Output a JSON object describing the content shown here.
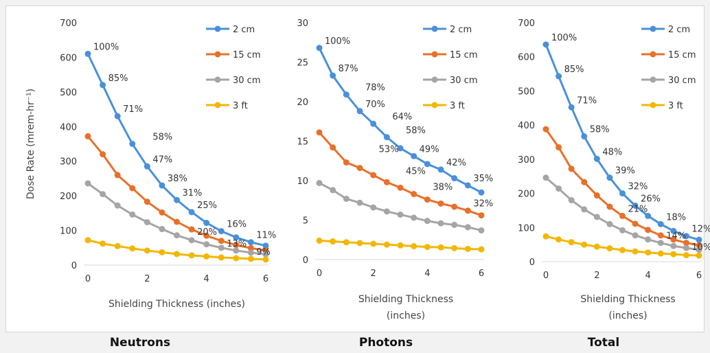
{
  "panels": [
    {
      "title": "Neutrons"
    },
    {
      "title": "Photons"
    },
    {
      "title": "Total"
    }
  ],
  "chart_data": [
    {
      "type": "line",
      "title": "Neutrons",
      "xlabel": "Shielding Thickness (inches)",
      "ylabel": "Dose Rate (mrem-hr⁻¹)",
      "xlim": [
        0,
        6
      ],
      "ylim": [
        0,
        700
      ],
      "x_ticks": [
        0,
        2,
        4,
        6
      ],
      "y_ticks": [
        0,
        100,
        200,
        300,
        400,
        500,
        600,
        700
      ],
      "x": [
        0,
        0.5,
        1,
        1.5,
        2,
        2.5,
        3,
        3.5,
        4,
        4.5,
        5,
        5.5,
        6
      ],
      "legend": "top-right",
      "grid": false,
      "series": [
        {
          "name": "2 cm",
          "color": "#4a90d9",
          "values": [
            610,
            520,
            430,
            350,
            285,
            230,
            188,
            153,
            122,
            98,
            80,
            66,
            56
          ]
        },
        {
          "name": "15 cm",
          "color": "#e8702a",
          "values": [
            372,
            320,
            260,
            222,
            183,
            152,
            125,
            103,
            85,
            70,
            58,
            49,
            42
          ]
        },
        {
          "name": "30 cm",
          "color": "#a5a5a5",
          "values": [
            236,
            205,
            172,
            146,
            124,
            104,
            86,
            72,
            60,
            50,
            42,
            36,
            31
          ]
        },
        {
          "name": "3 ft",
          "color": "#f2b705",
          "values": [
            72,
            62,
            55,
            48,
            42,
            37,
            32,
            28,
            25,
            22,
            20,
            18,
            16
          ]
        }
      ],
      "annotations": [
        {
          "text": "100%",
          "x": 0,
          "y": 610
        },
        {
          "text": "85%",
          "x": 0.5,
          "y": 520
        },
        {
          "text": "71%",
          "x": 1,
          "y": 430
        },
        {
          "text": "58%",
          "x": 2,
          "y": 350
        },
        {
          "text": "47%",
          "x": 2,
          "y": 285
        },
        {
          "text": "38%",
          "x": 2.5,
          "y": 230
        },
        {
          "text": "31%",
          "x": 3,
          "y": 188
        },
        {
          "text": "25%",
          "x": 3.5,
          "y": 153
        },
        {
          "text": "16%",
          "x": 4.5,
          "y": 98
        },
        {
          "text": "20%",
          "x": 3.5,
          "y": 75
        },
        {
          "text": "11%",
          "x": 5.5,
          "y": 66
        },
        {
          "text": "13%",
          "x": 4.5,
          "y": 42
        },
        {
          "text": "9%",
          "x": 5.5,
          "y": 18
        }
      ]
    },
    {
      "type": "line",
      "title": "Photons",
      "xlabel": "Shielding Thickness\n(inches)",
      "ylabel": "",
      "xlim": [
        0,
        6
      ],
      "ylim": [
        0,
        30
      ],
      "x_ticks": [
        0,
        2,
        4,
        6
      ],
      "y_ticks": [
        0,
        5,
        10,
        15,
        20,
        25,
        30
      ],
      "x": [
        0,
        0.5,
        1,
        1.5,
        2,
        2.5,
        3,
        3.5,
        4,
        4.5,
        5,
        5.5,
        6
      ],
      "legend": "top-right",
      "grid": false,
      "series": [
        {
          "name": "2 cm",
          "color": "#4a90d9",
          "values": [
            26.8,
            23.3,
            20.9,
            18.8,
            17.2,
            15.5,
            14.1,
            13.1,
            12.1,
            11.4,
            10.3,
            9.4,
            8.5
          ]
        },
        {
          "name": "15 cm",
          "color": "#e8702a",
          "values": [
            16.1,
            14.2,
            12.3,
            11.6,
            10.7,
            9.8,
            9.1,
            8.3,
            7.6,
            7.1,
            6.7,
            6.2,
            5.6
          ]
        },
        {
          "name": "30 cm",
          "color": "#a5a5a5",
          "values": [
            9.7,
            8.8,
            7.7,
            7.2,
            6.6,
            6.1,
            5.7,
            5.3,
            4.9,
            4.6,
            4.4,
            4.1,
            3.7
          ]
        },
        {
          "name": "3 ft",
          "color": "#f2b705",
          "values": [
            2.4,
            2.3,
            2.2,
            2.1,
            2.0,
            1.9,
            1.8,
            1.7,
            1.6,
            1.55,
            1.45,
            1.35,
            1.3
          ]
        }
      ],
      "annotations": [
        {
          "text": "100%",
          "x": 0,
          "y": 26.8
        },
        {
          "text": "87%",
          "x": 0.5,
          "y": 23.3
        },
        {
          "text": "78%",
          "x": 1.5,
          "y": 20.9
        },
        {
          "text": "70%",
          "x": 1.5,
          "y": 18.8
        },
        {
          "text": "64%",
          "x": 2.5,
          "y": 17.2
        },
        {
          "text": "58%",
          "x": 3,
          "y": 15.5
        },
        {
          "text": "53%",
          "x": 2,
          "y": 13.1
        },
        {
          "text": "49%",
          "x": 3.5,
          "y": 13.1
        },
        {
          "text": "45%",
          "x": 3,
          "y": 10.3
        },
        {
          "text": "42%",
          "x": 4.5,
          "y": 11.4
        },
        {
          "text": "38%",
          "x": 4,
          "y": 8.3
        },
        {
          "text": "35%",
          "x": 5.5,
          "y": 9.4
        },
        {
          "text": "32%",
          "x": 5.5,
          "y": 6.2
        }
      ]
    },
    {
      "type": "line",
      "title": "Total",
      "xlabel": "Shielding Thickness\n(inches)",
      "ylabel": "",
      "xlim": [
        0,
        6
      ],
      "ylim": [
        0,
        700
      ],
      "x_ticks": [
        0,
        2,
        4,
        6
      ],
      "y_ticks": [
        0,
        100,
        200,
        300,
        400,
        500,
        600,
        700
      ],
      "x": [
        0,
        0.5,
        1,
        1.5,
        2,
        2.5,
        3,
        3.5,
        4,
        4.5,
        5,
        5.5,
        6
      ],
      "legend": "top-right",
      "grid": false,
      "series": [
        {
          "name": "2 cm",
          "color": "#4a90d9",
          "values": [
            636,
            543,
            452,
            367,
            301,
            246,
            200,
            164,
            134,
            110,
            90,
            75,
            64
          ]
        },
        {
          "name": "15 cm",
          "color": "#e8702a",
          "values": [
            388,
            335,
            272,
            233,
            194,
            161,
            134,
            111,
            93,
            77,
            65,
            55,
            48
          ]
        },
        {
          "name": "30 cm",
          "color": "#a5a5a5",
          "values": [
            246,
            214,
            180,
            153,
            131,
            110,
            92,
            77,
            65,
            55,
            46,
            40,
            35
          ]
        },
        {
          "name": "3 ft",
          "color": "#f2b705",
          "values": [
            74,
            65,
            57,
            50,
            44,
            39,
            34,
            30,
            27,
            24,
            22,
            19,
            18
          ]
        }
      ],
      "annotations": [
        {
          "text": "100%",
          "x": 0,
          "y": 636
        },
        {
          "text": "85%",
          "x": 0.5,
          "y": 543
        },
        {
          "text": "71%",
          "x": 1,
          "y": 452
        },
        {
          "text": "58%",
          "x": 1.5,
          "y": 367
        },
        {
          "text": "48%",
          "x": 2,
          "y": 301
        },
        {
          "text": "39%",
          "x": 2.5,
          "y": 246
        },
        {
          "text": "32%",
          "x": 3,
          "y": 200
        },
        {
          "text": "26%",
          "x": 3.5,
          "y": 164
        },
        {
          "text": "21%",
          "x": 3,
          "y": 134
        },
        {
          "text": "18%",
          "x": 4.5,
          "y": 110
        },
        {
          "text": "14%",
          "x": 4.5,
          "y": 55
        },
        {
          "text": "12%",
          "x": 5.5,
          "y": 75
        },
        {
          "text": "10%",
          "x": 5.5,
          "y": 22
        }
      ]
    }
  ]
}
